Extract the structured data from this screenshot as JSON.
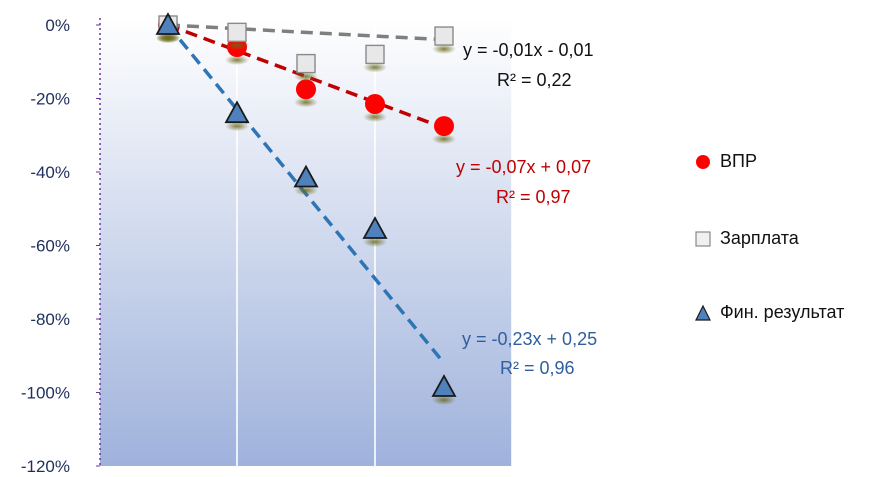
{
  "chart_data": {
    "type": "scatter",
    "x": [
      1,
      2,
      3,
      4,
      5
    ],
    "ylim": [
      -1.2,
      0
    ],
    "yticks": [
      0,
      -0.2,
      -0.4,
      -0.6,
      -0.8,
      -1.0,
      -1.2
    ],
    "ytick_labels": [
      "0%",
      "-20%",
      "-40%",
      "-60%",
      "-80%",
      "-100%",
      "-120%"
    ],
    "grid": "vertical",
    "legend_position": "right",
    "series": [
      {
        "name": "ВПР",
        "marker": "circle",
        "color": "#ff0000",
        "trend_color": "#c00000",
        "values": [
          0,
          -0.06,
          -0.175,
          -0.215,
          -0.275
        ],
        "trendline": {
          "slope": -0.07,
          "intercept": 0.07
        },
        "equation": "y = -0,07x + 0,07",
        "r2": "R² = 0,97",
        "equation_color": "#c00000"
      },
      {
        "name": "Зарплата",
        "marker": "square",
        "color": "#e8e8e8",
        "trend_color": "#7f7f7f",
        "values": [
          0,
          -0.02,
          -0.105,
          -0.08,
          -0.03
        ],
        "trendline": {
          "slope": -0.01,
          "intercept": -0.01
        },
        "equation": "y = -0,01x - 0,01",
        "r2": "R² = 0,22",
        "equation_color": "#111111"
      },
      {
        "name": "Фин. результат",
        "marker": "triangle",
        "color": "#4f81bd",
        "trend_color": "#2e75b6",
        "values": [
          0,
          -0.24,
          -0.415,
          -0.555,
          -0.985
        ],
        "trendline": {
          "slope": -0.23,
          "intercept": 0.25
        },
        "equation": "y = -0,23x + 0,25",
        "r2": "R² = 0,96",
        "equation_color": "#2e5f9e"
      }
    ]
  }
}
